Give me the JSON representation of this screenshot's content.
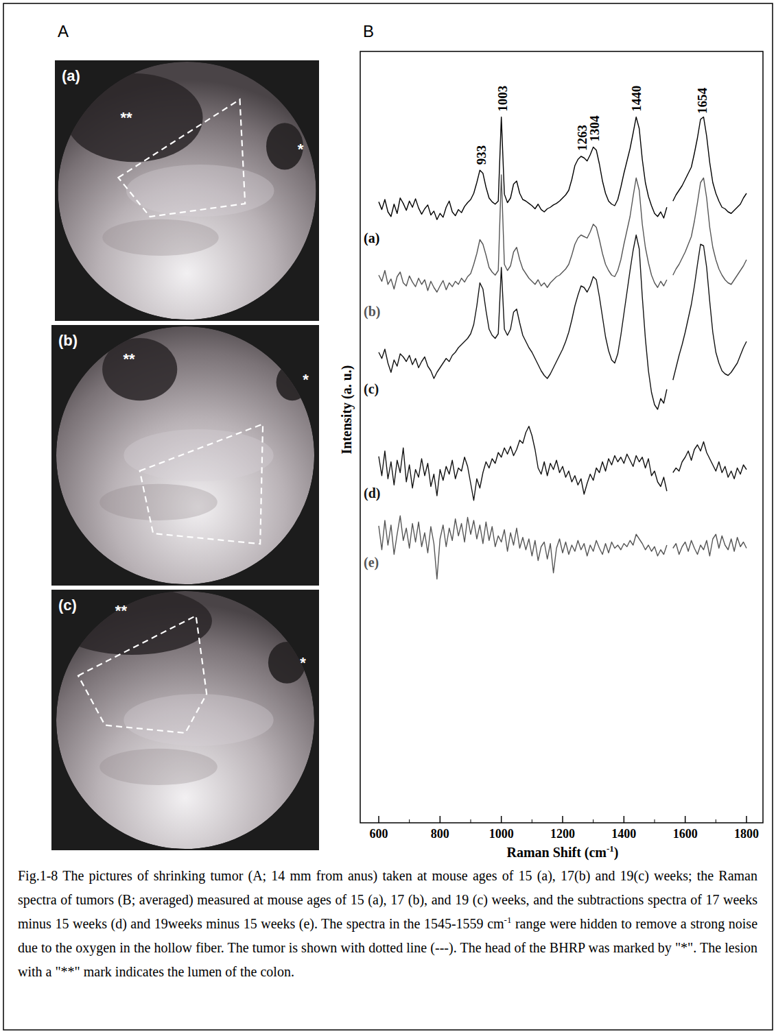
{
  "panel_a": {
    "letter": "A",
    "photos": [
      {
        "label": "(a)",
        "probe_mark": "*",
        "lumen_mark": "**"
      },
      {
        "label": "(b)",
        "probe_mark": "*",
        "lumen_mark": "**"
      },
      {
        "label": "(c)",
        "probe_mark": "*",
        "lumen_mark": "**"
      }
    ]
  },
  "panel_b": {
    "letter": "B"
  },
  "chart_data": {
    "type": "line",
    "x_label": [
      {
        "text": "Raman Shift (cm"
      },
      {
        "text": "-1",
        "sup": true
      },
      {
        "text": ")"
      }
    ],
    "y_label": "Intensity (a. u.)",
    "xlim": [
      600,
      1800
    ],
    "xticks": [
      600,
      800,
      1000,
      1200,
      1400,
      1600,
      1800
    ],
    "ylim": [
      0,
      100
    ],
    "tick_labels": "x",
    "grid": false,
    "peak_labels": [
      933,
      1003,
      1263,
      1304,
      1440,
      1654
    ],
    "x": [
      600,
      610,
      620,
      630,
      640,
      650,
      660,
      670,
      680,
      690,
      700,
      710,
      720,
      730,
      740,
      750,
      760,
      770,
      780,
      790,
      800,
      810,
      820,
      830,
      840,
      850,
      860,
      870,
      880,
      890,
      900,
      910,
      920,
      930,
      940,
      950,
      960,
      970,
      980,
      990,
      1000,
      1010,
      1020,
      1030,
      1040,
      1050,
      1060,
      1070,
      1080,
      1090,
      1100,
      1110,
      1120,
      1130,
      1140,
      1150,
      1160,
      1170,
      1180,
      1190,
      1200,
      1210,
      1220,
      1230,
      1240,
      1250,
      1260,
      1270,
      1280,
      1290,
      1300,
      1310,
      1320,
      1330,
      1340,
      1350,
      1360,
      1370,
      1380,
      1390,
      1400,
      1410,
      1420,
      1430,
      1440,
      1450,
      1460,
      1470,
      1480,
      1490,
      1500,
      1510,
      1520,
      1530,
      1540,
      1550,
      1560,
      1570,
      1580,
      1590,
      1600,
      1610,
      1620,
      1630,
      1640,
      1650,
      1660,
      1670,
      1680,
      1690,
      1700,
      1710,
      1720,
      1730,
      1740,
      1750,
      1760,
      1770,
      1780,
      1790,
      1800
    ],
    "series": [
      {
        "name": "(a)",
        "color": "#000000",
        "values": [
          80.5,
          79.5,
          80.8,
          79.2,
          78.6,
          80.2,
          79.0,
          81.0,
          80.3,
          79.4,
          80.6,
          79.8,
          80.9,
          79.7,
          78.9,
          79.6,
          80.1,
          78.8,
          79.3,
          78.2,
          79.0,
          78.5,
          79.8,
          80.6,
          79.2,
          78.7,
          79.5,
          79.1,
          79.9,
          80.4,
          80.8,
          81.6,
          83.0,
          84.6,
          84.2,
          82.4,
          81.0,
          80.5,
          80.2,
          80.6,
          91.5,
          81.5,
          80.4,
          81.0,
          82.8,
          83.2,
          81.6,
          80.8,
          80.6,
          80.3,
          80.0,
          79.6,
          80.2,
          79.5,
          79.2,
          79.6,
          79.8,
          80.1,
          80.3,
          80.6,
          81.0,
          81.4,
          82.0,
          83.4,
          85.2,
          86.0,
          86.4,
          86.2,
          85.8,
          86.6,
          87.6,
          87.2,
          85.4,
          83.2,
          81.6,
          80.6,
          80.2,
          80.0,
          80.8,
          82.4,
          84.2,
          85.8,
          87.4,
          89.4,
          91.5,
          90.0,
          86.0,
          83.0,
          81.2,
          80.0,
          79.0,
          78.6,
          79.2,
          78.4,
          79.8,
          null,
          80.6,
          81.4,
          82.0,
          82.6,
          83.4,
          84.2,
          85.0,
          86.8,
          88.8,
          91.2,
          91.5,
          89.0,
          85.6,
          83.0,
          81.6,
          80.6,
          79.8,
          79.6,
          79.2,
          79.0,
          79.4,
          79.8,
          80.2,
          81.0,
          81.6
        ]
      },
      {
        "name": "(b)",
        "color": "#555555",
        "values": [
          71.0,
          70.2,
          71.6,
          69.8,
          70.5,
          69.2,
          70.8,
          71.4,
          70.0,
          69.6,
          70.9,
          70.1,
          69.5,
          70.6,
          69.8,
          70.4,
          69.0,
          70.2,
          69.4,
          68.8,
          69.6,
          70.3,
          69.1,
          70.0,
          69.5,
          70.2,
          69.8,
          70.6,
          70.1,
          70.8,
          71.2,
          72.4,
          73.8,
          75.6,
          75.0,
          73.6,
          72.0,
          71.4,
          71.0,
          71.6,
          84.0,
          72.4,
          71.6,
          72.2,
          74.0,
          74.6,
          73.0,
          71.8,
          71.2,
          70.6,
          70.2,
          69.8,
          70.4,
          69.6,
          70.0,
          69.4,
          70.0,
          70.4,
          70.8,
          71.0,
          71.4,
          71.8,
          72.4,
          73.6,
          75.0,
          75.8,
          76.2,
          76.0,
          75.8,
          76.6,
          77.6,
          77.2,
          75.6,
          73.8,
          72.4,
          71.6,
          71.0,
          70.8,
          71.6,
          73.0,
          75.0,
          76.8,
          78.6,
          81.2,
          83.6,
          82.0,
          77.6,
          74.6,
          72.6,
          71.0,
          70.0,
          69.4,
          70.2,
          69.6,
          70.4,
          null,
          71.0,
          71.8,
          72.4,
          73.2,
          74.0,
          75.0,
          76.0,
          78.0,
          80.4,
          83.0,
          83.6,
          81.0,
          77.2,
          74.6,
          73.0,
          71.8,
          71.0,
          70.4,
          70.0,
          69.8,
          70.4,
          71.0,
          71.6,
          72.2,
          73.0
        ]
      },
      {
        "name": "(c)",
        "color": "#111111",
        "values": [
          61.0,
          60.2,
          61.4,
          59.6,
          58.4,
          60.0,
          59.2,
          60.8,
          60.4,
          59.8,
          60.6,
          59.4,
          60.2,
          59.0,
          59.8,
          60.4,
          59.2,
          58.6,
          57.6,
          58.4,
          59.0,
          59.6,
          60.2,
          59.8,
          60.6,
          61.0,
          61.6,
          62.0,
          62.4,
          62.8,
          63.4,
          64.6,
          67.0,
          70.0,
          69.2,
          66.4,
          64.0,
          63.2,
          62.8,
          63.4,
          72.0,
          64.0,
          63.2,
          64.0,
          66.2,
          66.6,
          64.8,
          63.2,
          62.4,
          61.6,
          61.0,
          60.2,
          59.4,
          58.6,
          58.0,
          57.6,
          58.2,
          59.0,
          59.8,
          60.6,
          61.4,
          62.4,
          63.6,
          65.2,
          67.0,
          68.4,
          69.6,
          69.4,
          68.8,
          69.6,
          70.8,
          70.4,
          68.2,
          65.6,
          63.0,
          61.2,
          60.0,
          59.6,
          60.8,
          63.2,
          66.0,
          68.8,
          71.6,
          74.2,
          76.2,
          74.4,
          68.2,
          62.8,
          58.6,
          55.8,
          54.2,
          53.6,
          55.0,
          54.4,
          56.2,
          null,
          57.4,
          59.0,
          60.6,
          62.0,
          63.6,
          65.4,
          67.2,
          69.6,
          72.4,
          75.0,
          74.8,
          72.0,
          67.6,
          63.6,
          61.0,
          59.6,
          58.6,
          58.2,
          58.0,
          58.4,
          59.0,
          59.6,
          60.6,
          61.6,
          62.4
        ]
      },
      {
        "name": "(d)",
        "color": "#111111",
        "values": [
          47.5,
          45.0,
          48.2,
          44.6,
          46.8,
          43.8,
          47.0,
          45.4,
          48.6,
          44.2,
          46.4,
          43.4,
          45.8,
          44.8,
          47.2,
          45.0,
          46.6,
          43.6,
          45.2,
          42.4,
          45.8,
          44.4,
          46.2,
          45.2,
          47.0,
          44.6,
          46.0,
          45.6,
          47.4,
          46.2,
          44.0,
          41.8,
          44.6,
          43.4,
          45.4,
          46.8,
          46.0,
          47.2,
          46.6,
          48.0,
          47.4,
          48.6,
          47.8,
          48.8,
          47.6,
          48.4,
          49.6,
          49.2,
          50.6,
          51.4,
          50.2,
          48.4,
          46.0,
          45.2,
          46.8,
          45.0,
          46.6,
          45.8,
          47.0,
          45.4,
          46.2,
          44.8,
          45.6,
          44.2,
          45.0,
          43.8,
          44.6,
          42.6,
          44.0,
          45.2,
          44.4,
          46.0,
          45.4,
          46.8,
          45.6,
          47.2,
          46.4,
          47.6,
          46.8,
          47.4,
          46.6,
          47.8,
          47.0,
          46.2,
          47.6,
          46.8,
          47.4,
          46.0,
          47.2,
          45.0,
          45.6,
          44.2,
          43.6,
          44.8,
          43.0,
          null,
          45.4,
          46.0,
          45.6,
          46.8,
          47.4,
          48.2,
          47.0,
          48.4,
          49.0,
          48.2,
          49.4,
          48.0,
          47.2,
          46.4,
          45.6,
          46.8,
          45.4,
          46.2,
          44.8,
          45.6,
          44.6,
          46.0,
          45.2,
          46.4,
          45.8
        ]
      },
      {
        "name": "(e)",
        "color": "#555555",
        "values": [
          38.5,
          35.4,
          39.2,
          36.0,
          38.6,
          34.8,
          37.4,
          39.8,
          36.6,
          38.2,
          35.6,
          38.8,
          36.4,
          39.0,
          35.8,
          37.6,
          35.0,
          38.4,
          36.2,
          31.6,
          36.8,
          38.6,
          35.8,
          38.2,
          36.6,
          39.4,
          37.2,
          38.8,
          36.4,
          39.6,
          37.4,
          39.2,
          36.8,
          38.6,
          36.2,
          39.0,
          36.6,
          38.4,
          35.8,
          37.2,
          36.4,
          38.0,
          35.2,
          37.6,
          36.0,
          38.2,
          35.6,
          37.0,
          35.4,
          36.8,
          34.6,
          36.6,
          34.0,
          35.8,
          36.4,
          34.2,
          36.2,
          32.4,
          35.6,
          36.8,
          35.0,
          36.4,
          34.8,
          36.0,
          35.2,
          36.6,
          35.4,
          36.2,
          34.6,
          36.0,
          35.2,
          36.6,
          35.6,
          34.8,
          36.2,
          35.0,
          36.4,
          35.6,
          36.0,
          35.4,
          36.2,
          35.8,
          36.6,
          36.0,
          37.4,
          36.8,
          36.2,
          35.4,
          36.0,
          35.2,
          35.8,
          34.6,
          35.4,
          34.8,
          36.0,
          null,
          35.6,
          36.2,
          34.8,
          35.8,
          36.4,
          35.2,
          36.6,
          35.6,
          34.8,
          36.0,
          35.4,
          36.6,
          34.6,
          36.8,
          37.4,
          35.6,
          37.2,
          36.0,
          35.4,
          36.8,
          35.2,
          37.0,
          35.8,
          36.4,
          35.6
        ]
      }
    ]
  },
  "caption": [
    {
      "text": "Fig.1-8 The pictures of shrinking tumor (A; 14 mm from anus) taken at mouse ages of 15 (a), 17(b) and 19(c) weeks; the Raman spectra of tumors (B; averaged) measured at mouse ages of 15 (a), 17 (b), and 19 (c) weeks, and the subtractions spectra of 17 weeks minus 15 weeks (d) and 19weeks minus 15 weeks (e). The spectra in the 1545-1559 cm"
    },
    {
      "text": "-1",
      "sup": true
    },
    {
      "text": " range were hidden to remove a strong noise due to the oxygen in the hollow fiber. The tumor is shown with dotted line (---). The head of the BHRP was marked by \"*\". The lesion with a \"**\" mark indicates the lumen of the colon."
    }
  ]
}
